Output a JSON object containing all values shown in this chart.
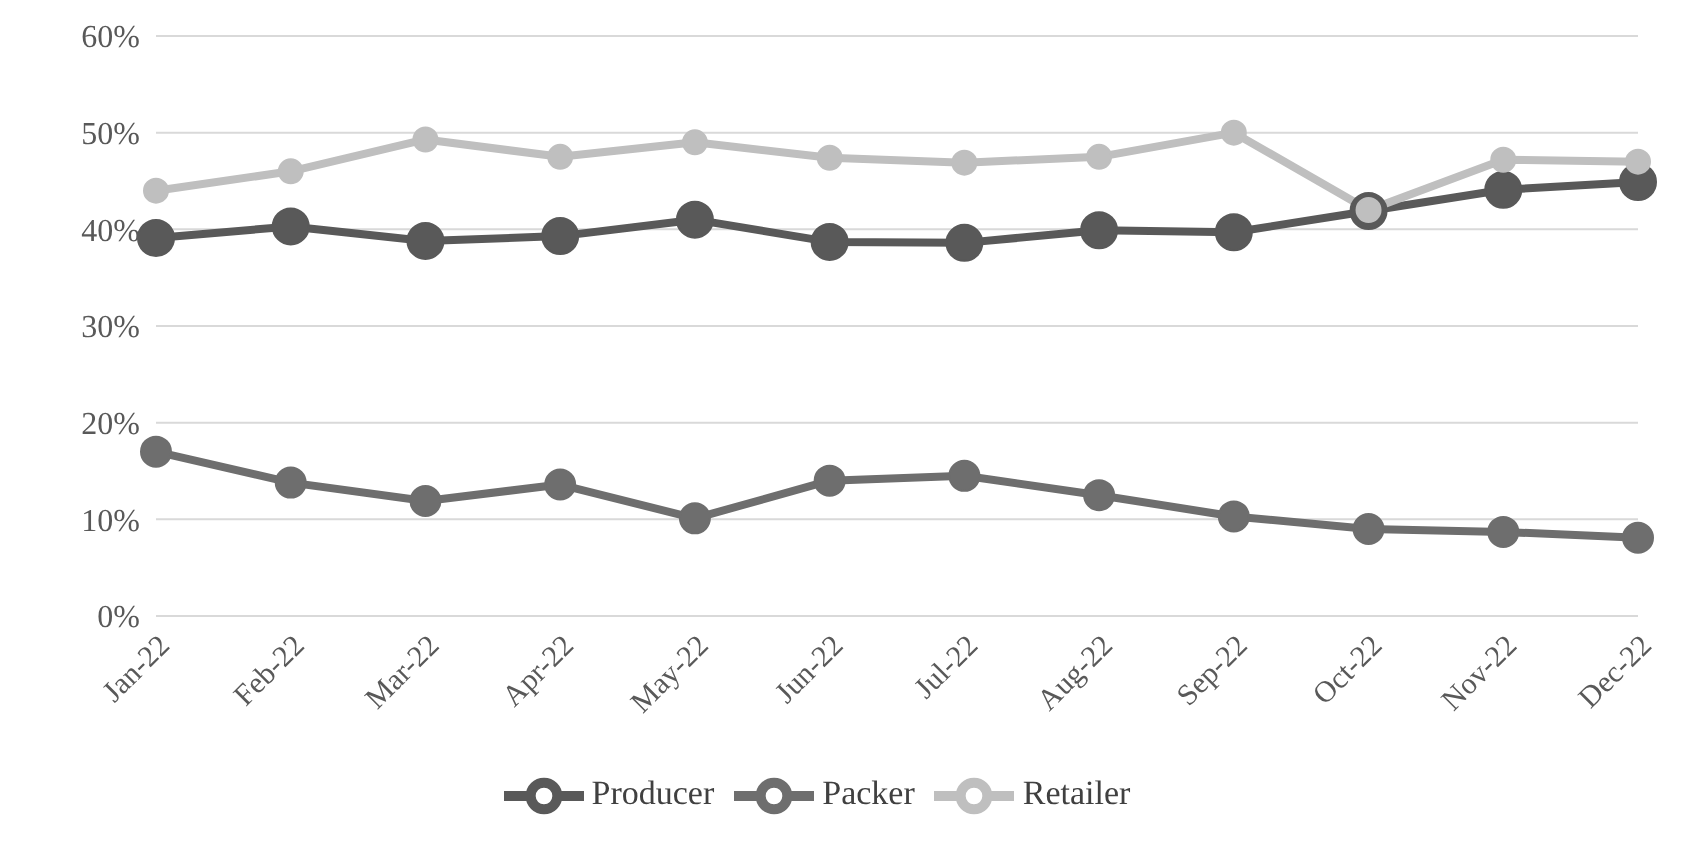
{
  "chart_data": {
    "type": "line",
    "categories": [
      "Jan-22",
      "Feb-22",
      "Mar-22",
      "Apr-22",
      "May-22",
      "Jun-22",
      "Jul-22",
      "Aug-22",
      "Sep-22",
      "Oct-22",
      "Nov-22",
      "Dec-22"
    ],
    "series": [
      {
        "name": "Producer",
        "color": "#595959",
        "values": [
          39.1,
          40.3,
          38.8,
          39.3,
          41.0,
          38.7,
          38.6,
          39.9,
          39.7,
          41.9,
          44.1,
          44.9
        ]
      },
      {
        "name": "Packer",
        "color": "#6e6e6e",
        "values": [
          17.0,
          13.8,
          11.9,
          13.6,
          10.1,
          14.0,
          14.5,
          12.5,
          10.3,
          9.0,
          8.7,
          8.1
        ]
      },
      {
        "name": "Retailer",
        "color": "#bfbfbf",
        "values": [
          44.0,
          46.0,
          49.3,
          47.5,
          49.0,
          47.4,
          46.9,
          47.5,
          50.0,
          42.0,
          47.2,
          47.0
        ]
      }
    ],
    "ylim": [
      0,
      60
    ],
    "yticks": [
      {
        "value": 0,
        "label": "0%"
      },
      {
        "value": 10,
        "label": "10%"
      },
      {
        "value": 20,
        "label": "20%"
      },
      {
        "value": 30,
        "label": "30%"
      },
      {
        "value": 40,
        "label": "40%"
      },
      {
        "value": 50,
        "label": "50%"
      },
      {
        "value": 60,
        "label": "60%"
      }
    ],
    "grid": "y",
    "legend": "bottom",
    "marker": "circle",
    "line_style": "solid"
  }
}
